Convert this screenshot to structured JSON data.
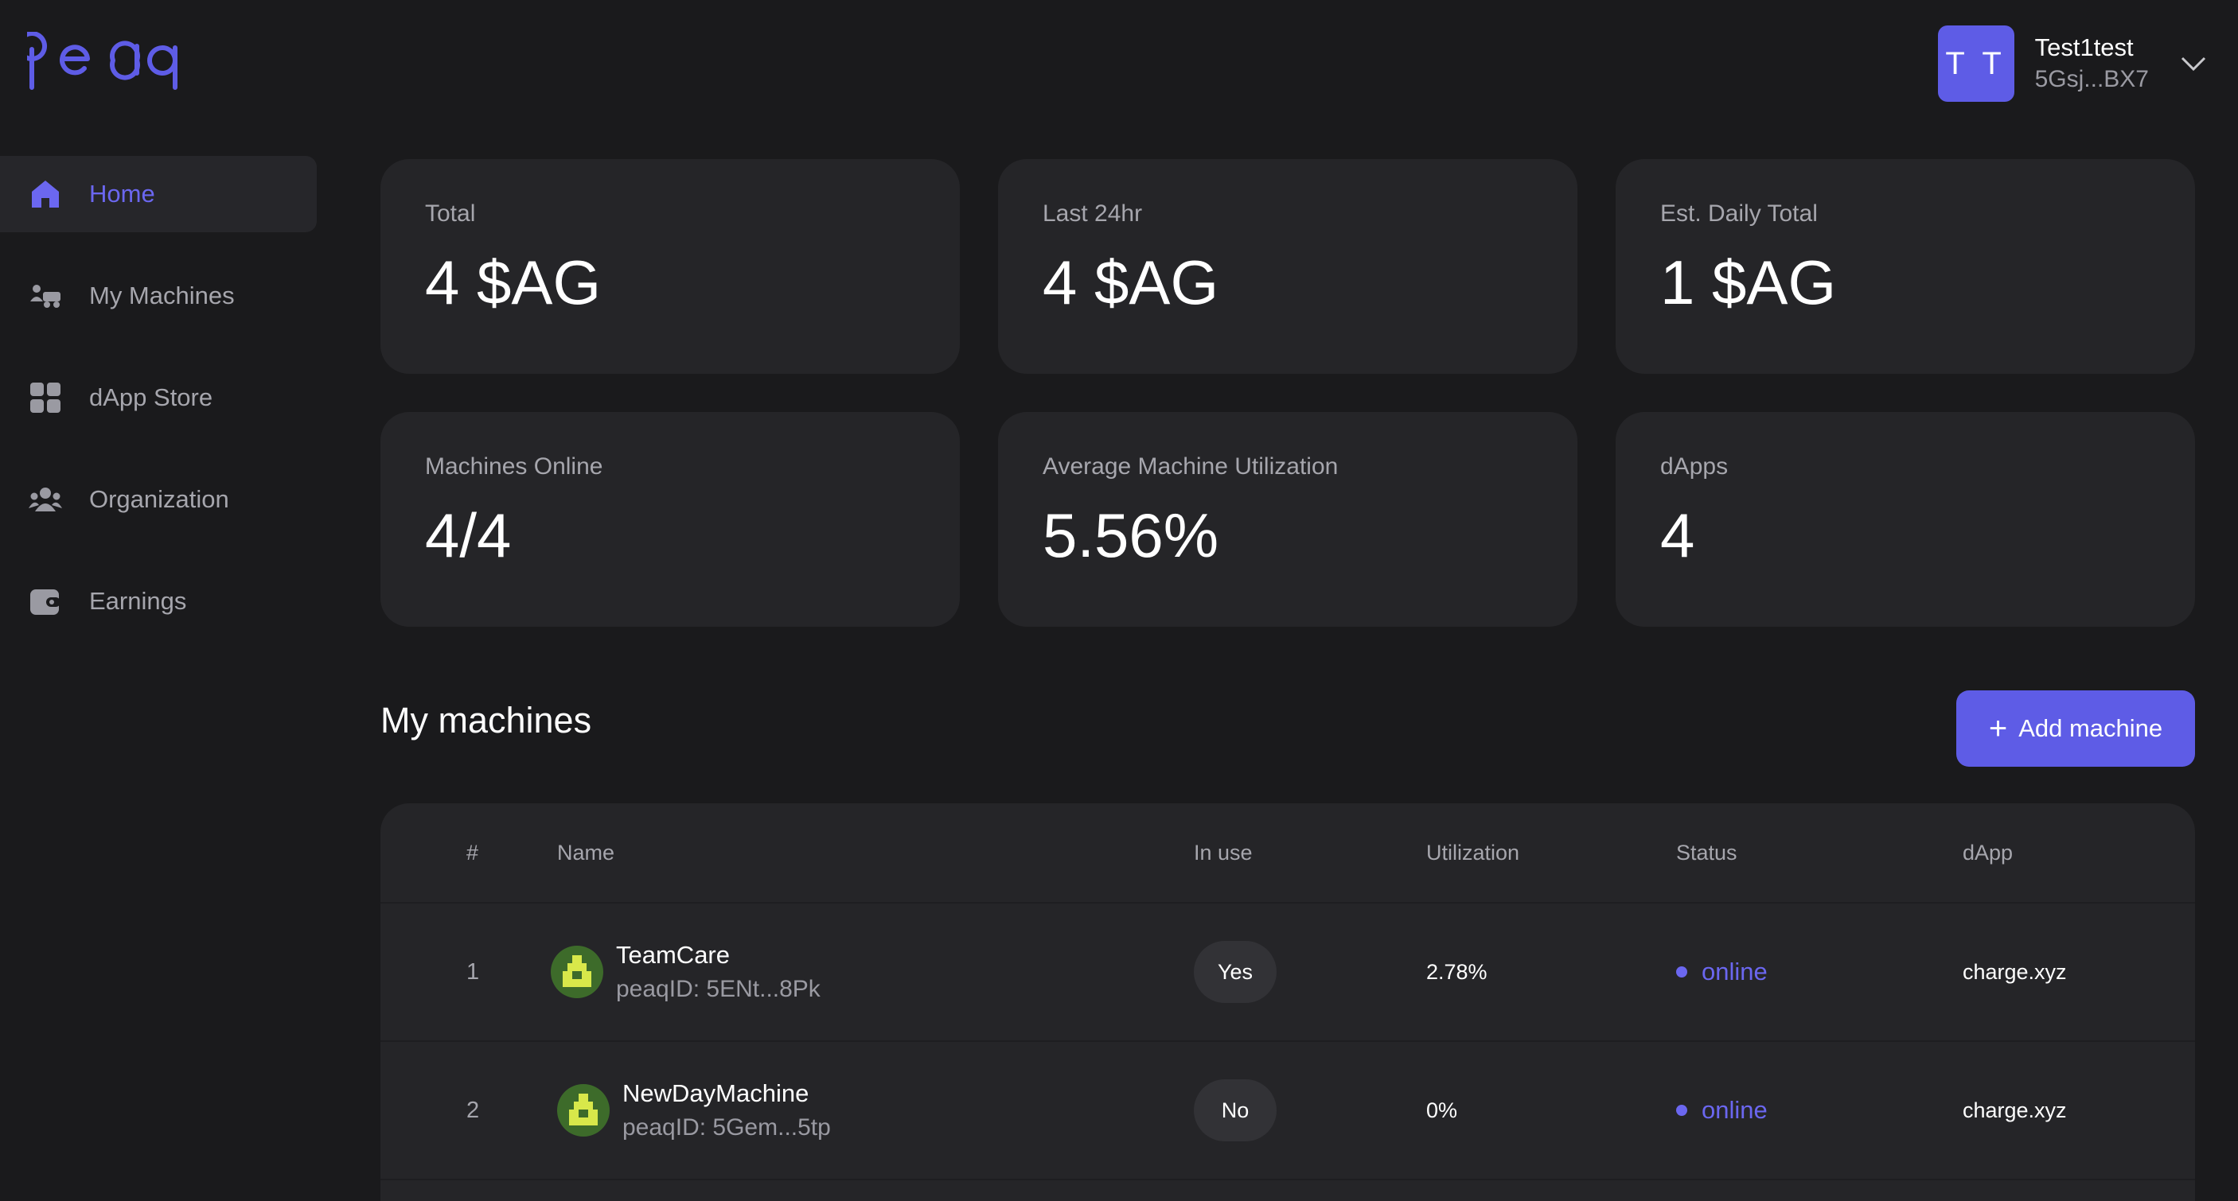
{
  "header": {
    "logo_text": "peaq",
    "user": {
      "initials": "T T",
      "name": "Test1test",
      "address": "5Gsj...BX7"
    }
  },
  "colors": {
    "accent": "#5e5ce6",
    "background": "#1a1a1c",
    "card": "#252528"
  },
  "sidebar": {
    "items": [
      {
        "label": "Home",
        "icon": "home-icon",
        "active": true
      },
      {
        "label": "My Machines",
        "icon": "machines-icon"
      },
      {
        "label": "dApp Store",
        "icon": "grid-icon"
      },
      {
        "label": "Organization",
        "icon": "people-icon"
      },
      {
        "label": "Earnings",
        "icon": "wallet-icon"
      }
    ]
  },
  "stats": [
    {
      "label": "Total",
      "value": "4 $AG"
    },
    {
      "label": "Last 24hr",
      "value": "4 $AG"
    },
    {
      "label": "Est. Daily Total",
      "value": "1 $AG"
    },
    {
      "label": "Machines Online",
      "value": "4/4"
    },
    {
      "label": "Average Machine Utilization",
      "value": "5.56%"
    },
    {
      "label": "dApps",
      "value": "4"
    }
  ],
  "machines": {
    "title": "My machines",
    "add_button": "Add machine",
    "columns": [
      "#",
      "Name",
      "In use",
      "Utilization",
      "Status",
      "dApp"
    ],
    "rows": [
      {
        "index": "1",
        "name": "TeamCare",
        "peaq_id": "peaqID: 5ENt...8Pk",
        "in_use": "Yes",
        "utilization": "2.78%",
        "status": "online",
        "dapp": "charge.xyz"
      },
      {
        "index": "2",
        "name": "NewDayMachine",
        "peaq_id": "peaqID: 5Gem...5tp",
        "in_use": "No",
        "utilization": "0%",
        "status": "online",
        "dapp": "charge.xyz"
      }
    ]
  }
}
